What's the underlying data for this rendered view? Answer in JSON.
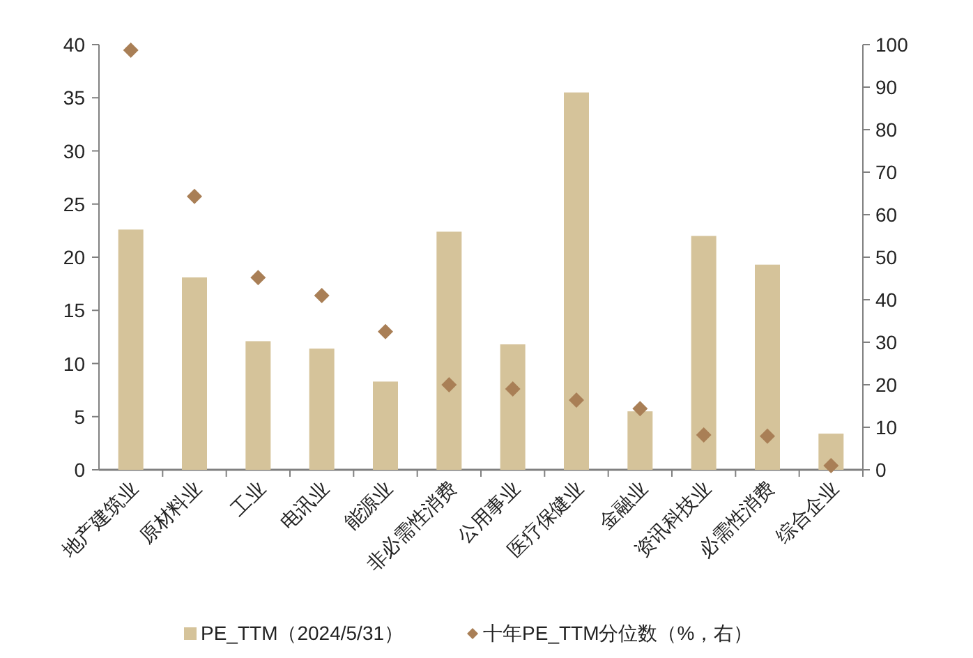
{
  "chart_data": {
    "type": "bar",
    "categories": [
      "地产建筑业",
      "原材料业",
      "工业",
      "电讯业",
      "能源业",
      "非必需性消费",
      "公用事业",
      "医疗保健业",
      "金融业",
      "资讯科技业",
      "必需性消费",
      "综合企业"
    ],
    "series": [
      {
        "name": "PE_TTM（2024/5/31）",
        "color": "#d5c39a",
        "values": [
          22.6,
          18.1,
          12.1,
          11.4,
          8.3,
          22.4,
          11.8,
          35.5,
          5.5,
          22.0,
          19.3,
          3.4
        ]
      },
      {
        "name": "十年PE_TTM分位数（%，右）",
        "type": "scatter",
        "axis": "y2",
        "marker": "diamond",
        "color": "#a97f56",
        "values": [
          98.7,
          64.3,
          45.2,
          41,
          32.5,
          20,
          19,
          16.4,
          14.4,
          8.2,
          7.9,
          1
        ]
      }
    ],
    "ylim": [
      0,
      40
    ],
    "yticks": [
      0,
      5,
      10,
      15,
      20,
      25,
      30,
      35,
      40
    ],
    "y2lim": [
      0,
      100
    ],
    "y2ticks": [
      0,
      10,
      20,
      30,
      40,
      50,
      60,
      70,
      80,
      90,
      100
    ],
    "legend": "bottom",
    "grid": false
  }
}
